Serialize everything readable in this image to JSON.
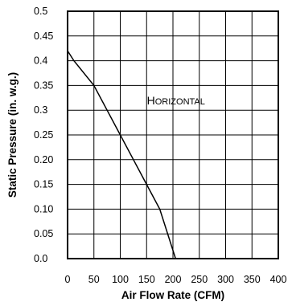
{
  "chart_data": {
    "type": "line",
    "xlabel": "Air Flow Rate (CFM)",
    "ylabel": "Static Pressure (in. w.g.)",
    "xlim": [
      0,
      400
    ],
    "ylim": [
      0,
      0.5
    ],
    "x_ticks": [
      "0",
      "50",
      "100",
      "150",
      "200",
      "250",
      "300",
      "350",
      "400"
    ],
    "y_ticks": [
      "0.0",
      "0.05",
      "0.10",
      "0.15",
      "0.20",
      "0.25",
      "0.3",
      "0.35",
      "0.4",
      "0.45",
      "0.5"
    ],
    "grid": true,
    "annotation": {
      "first": "H",
      "rest": "ORIZONTAL",
      "x": 175,
      "y": 0.3
    },
    "series": [
      {
        "x": [
          0,
          12,
          50,
          75,
          100,
          125,
          150,
          175,
          205
        ],
        "y": [
          0.42,
          0.4,
          0.35,
          0.3,
          0.25,
          0.2,
          0.15,
          0.1,
          0.0
        ]
      }
    ]
  }
}
